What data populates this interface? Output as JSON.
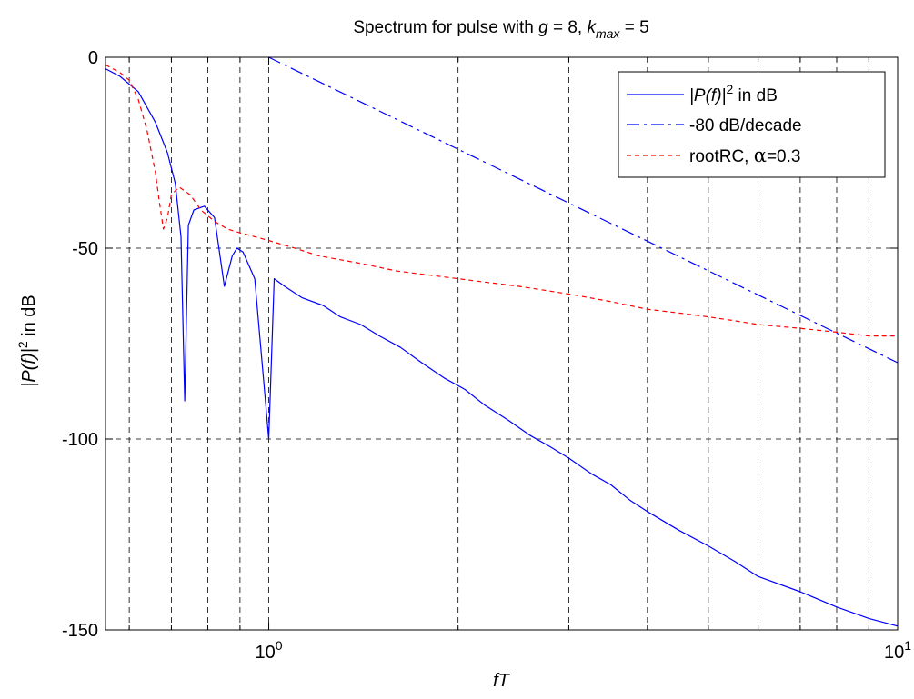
{
  "chart_data": {
    "type": "line",
    "title": {
      "prefix": "Spectrum for pulse with ",
      "g_symbol": "g",
      "g_value": " = 8, ",
      "k_symbol": "k",
      "k_subscript": "max",
      "k_value": " = 5"
    },
    "xlabel": "fT",
    "ylabel": {
      "main": "|P(f)|",
      "sup": "2",
      "rest": " in dB"
    },
    "x_scale": "log",
    "xlim": [
      0.55,
      10
    ],
    "ylim": [
      -150,
      0
    ],
    "grid": true,
    "grid_style": "dashed",
    "y_ticks": [
      0,
      -50,
      -100,
      -150
    ],
    "y_tick_labels": [
      "0",
      "-50",
      "-100",
      "-150"
    ],
    "x_ticks": [
      {
        "value": 1,
        "base": "10",
        "exp": "0"
      },
      {
        "value": 10,
        "base": "10",
        "exp": "1"
      }
    ],
    "x_minor_ticks": [
      0.6,
      0.7,
      0.8,
      0.9,
      2,
      3,
      4,
      5,
      6,
      7,
      8,
      9
    ],
    "legend": {
      "placement": "top-right",
      "entries": [
        {
          "label_main": "|P(f)|",
          "label_sup": "2",
          "label_rest": " in dB",
          "color": "#0000ff",
          "style": "solid"
        },
        {
          "label_main": "-80 dB/decade",
          "color": "#0000ff",
          "style": "dashdot"
        },
        {
          "label_main": "rootRC, ",
          "label_greek": "α",
          "label_rest": "=0.3",
          "color": "#ff0000",
          "style": "dashed"
        }
      ]
    },
    "series": [
      {
        "name": "|P(f)|^2 in dB",
        "color": "#0000ff",
        "style": "solid",
        "x": [
          0.55,
          0.58,
          0.62,
          0.66,
          0.69,
          0.71,
          0.725,
          0.735,
          0.745,
          0.76,
          0.79,
          0.82,
          0.85,
          0.875,
          0.89,
          0.91,
          0.95,
          1.0,
          1.02,
          1.06,
          1.13,
          1.22,
          1.3,
          1.4,
          1.5,
          1.62,
          1.75,
          1.9,
          2.05,
          2.2,
          2.4,
          2.6,
          2.8,
          3.0,
          3.25,
          3.5,
          3.75,
          4.0,
          4.5,
          5.0,
          5.5,
          6.0,
          7.0,
          8.0,
          9.0,
          10.0
        ],
        "y": [
          -3,
          -5,
          -9,
          -17,
          -25,
          -33,
          -47,
          -90,
          -44,
          -40,
          -39,
          -42,
          -60,
          -52,
          -50,
          -51,
          -58,
          -100,
          -58,
          -60,
          -63,
          -65,
          -68,
          -70,
          -73,
          -76,
          -80,
          -84,
          -87,
          -91,
          -95,
          -99,
          -102,
          -105,
          -109,
          -112,
          -116,
          -119,
          -124,
          -128,
          -132,
          -136,
          -140,
          -144,
          -147,
          -149
        ]
      },
      {
        "name": "-80 dB/decade",
        "color": "#0000ff",
        "style": "dashdot",
        "x": [
          1,
          10
        ],
        "y": [
          0,
          -80
        ]
      },
      {
        "name": "rootRC, α=0.3",
        "color": "#ff0000",
        "style": "dashed",
        "x": [
          0.55,
          0.58,
          0.6,
          0.62,
          0.64,
          0.66,
          0.67,
          0.68,
          0.69,
          0.7,
          0.72,
          0.75,
          0.78,
          0.82,
          0.86,
          0.9,
          0.95,
          1.0,
          1.1,
          1.2,
          1.4,
          1.6,
          2.0,
          2.5,
          3.0,
          3.5,
          4.0,
          4.5,
          5.0,
          5.5,
          6.0,
          7.0,
          8.0,
          9.0,
          10.0
        ],
        "y": [
          -2,
          -4,
          -6,
          -11,
          -19,
          -30,
          -38,
          -45,
          -42,
          -36,
          -34,
          -36,
          -40,
          -43,
          -45,
          -46,
          -47,
          -48,
          -50,
          -52,
          -54,
          -56,
          -58,
          -60,
          -62,
          -64,
          -66,
          -67,
          -68,
          -69,
          -70,
          -71,
          -72,
          -73,
          -73
        ]
      }
    ]
  }
}
